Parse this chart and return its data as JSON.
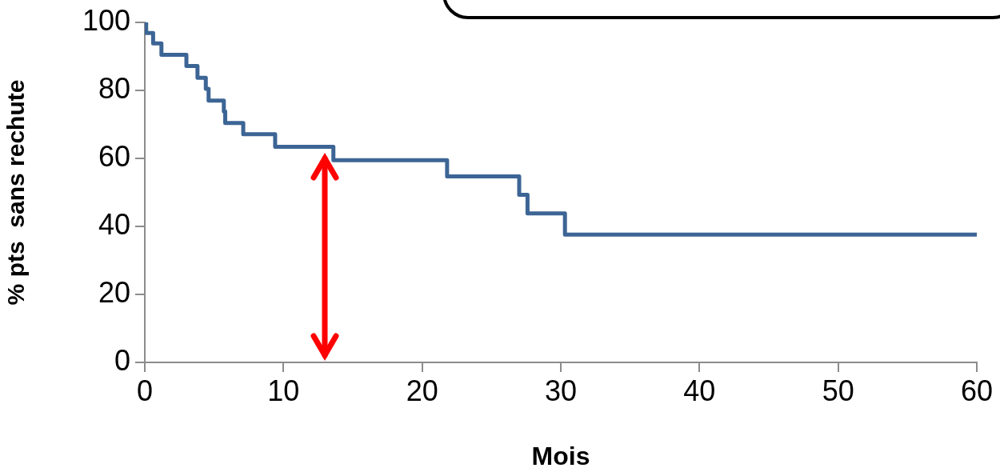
{
  "chart_data": {
    "type": "step",
    "xlabel": "Mois",
    "ylabel": "% pts  sans rechute",
    "xlim": [
      0,
      60
    ],
    "xticks": [
      0,
      10,
      20,
      30,
      40,
      50,
      60
    ],
    "ylim": [
      0,
      100
    ],
    "yticks": [
      0,
      20,
      40,
      60,
      80,
      100
    ],
    "grid": false,
    "legend": false,
    "marker": "none",
    "line_style": "solid",
    "series": [
      {
        "color": "#3c6595",
        "x": [
          0,
          0.1,
          0.6,
          1.2,
          3,
          3.8,
          4.4,
          4.6,
          5.7,
          5.8,
          7.1,
          9.4,
          13.6,
          21.8,
          27,
          27.6,
          30.3,
          60
        ],
        "values": [
          100,
          96.9,
          93.8,
          90.5,
          87.2,
          83.7,
          80.5,
          77,
          73.8,
          70.4,
          67.1,
          63.4,
          59.5,
          54.7,
          49.3,
          43.8,
          37.6,
          37.6
        ]
      }
    ]
  }
}
